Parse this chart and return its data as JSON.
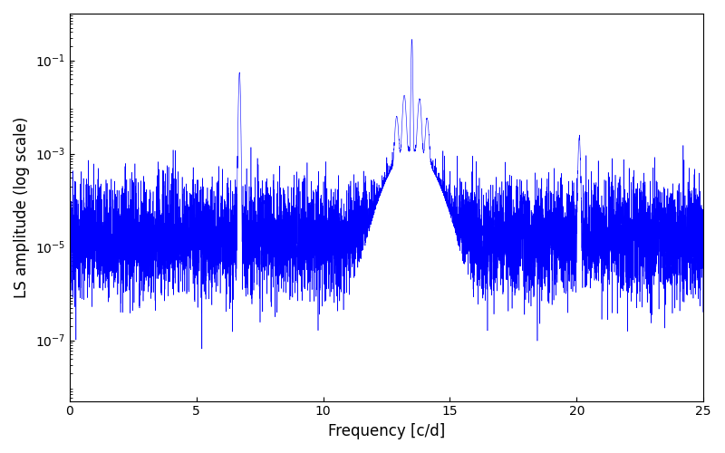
{
  "xlabel": "Frequency [c/d]",
  "ylabel": "LS amplitude (log scale)",
  "xlim": [
    0,
    25
  ],
  "ylim": [
    5e-09,
    1.0
  ],
  "line_color": "#0000ff",
  "background_color": "#ffffff",
  "figsize": [
    8.0,
    5.0
  ],
  "dpi": 100,
  "peak1_freq": 6.7,
  "peak1_amp": 0.055,
  "peak2_freq": 13.5,
  "peak2_amp": 0.28,
  "peak3_freq": 20.1,
  "peak3_amp": 0.0022,
  "noise_mean": 1.5e-05,
  "noise_sigma": 1.4,
  "num_points": 8000,
  "freq_min": 0.0,
  "freq_max": 25.0,
  "yticks": [
    1e-07,
    1e-05,
    0.001,
    0.1
  ],
  "xticks": [
    0,
    5,
    10,
    15,
    20,
    25
  ]
}
